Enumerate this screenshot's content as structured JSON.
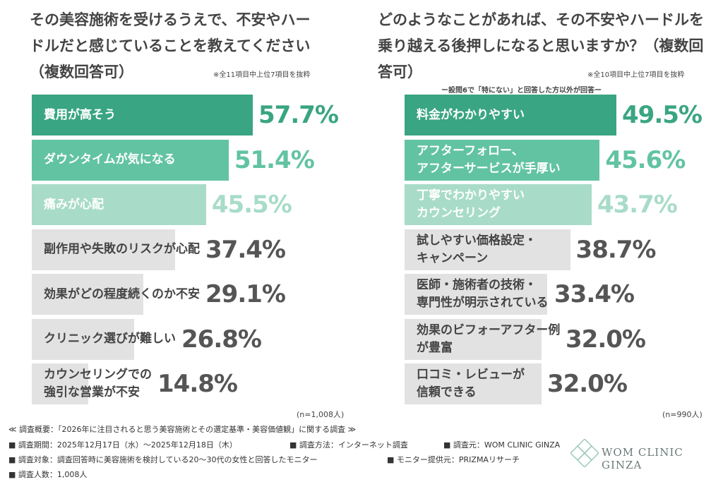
{
  "chart_data": [
    {
      "type": "bar",
      "orientation": "horizontal",
      "title": "その美容施術を受けるうえで、不安やハードルだと感じていることを教えてください（複数回答可）",
      "note": "※全11項目中上位7項目を抜粋",
      "sample": "(n=1,008人)",
      "categories": [
        "費用が高そう",
        "ダウンタイムが気になる",
        "痛みが心配",
        "副作用や失敗のリスクが心配",
        "効果がどの程度続くのか不安",
        "クリニック選びが難しい",
        "カウンセリングでの\n強引な営業が不安"
      ],
      "values": [
        57.7,
        51.4,
        45.5,
        37.4,
        29.1,
        26.8,
        14.8
      ],
      "value_labels": [
        "57.7%",
        "51.4%",
        "45.5%",
        "37.4%",
        "29.1%",
        "26.8%",
        "14.8%"
      ],
      "colors": [
        "#3aa582",
        "#62c3a2",
        "#a8dcc8",
        "#e2e2e2",
        "#e2e2e2",
        "#e2e2e2",
        "#e2e2e2"
      ],
      "text_colors": [
        "#ffffff",
        "#ffffff",
        "#ffffff",
        "#444444",
        "#444444",
        "#444444",
        "#444444"
      ],
      "label_colors": [
        "#3aa582",
        "#62c3a2",
        "#a8dcc8",
        "#555555",
        "#555555",
        "#555555",
        "#555555"
      ]
    },
    {
      "type": "bar",
      "orientation": "horizontal",
      "title": "どのようなことがあれば、その不安やハードルを乗り越える後押しになると思いますか？（複数回答可）",
      "subtitle": "ー設問6で「特にない」と回答した方以外が回答ー",
      "note": "※全10項目中上位7項目を抜粋",
      "sample": "(n=990人)",
      "categories": [
        "料金がわかりやすい",
        "アフターフォロー、\nアフターサービスが手厚い",
        "丁寧でわかりやすい\nカウンセリング",
        "試しやすい価格設定・\nキャンペーン",
        "医師・施術者の技術・\n専門性が明示されている",
        "効果のビフォーアフター例\nが豊富",
        "口コミ・レビューが\n信頼できる"
      ],
      "values": [
        49.5,
        45.6,
        43.7,
        38.7,
        33.4,
        32.0,
        32.0
      ],
      "value_labels": [
        "49.5%",
        "45.6%",
        "43.7%",
        "38.7%",
        "33.4%",
        "32.0%",
        "32.0%"
      ],
      "colors": [
        "#3aa582",
        "#62c3a2",
        "#a8dcc8",
        "#e2e2e2",
        "#e2e2e2",
        "#e2e2e2",
        "#e2e2e2"
      ],
      "text_colors": [
        "#ffffff",
        "#ffffff",
        "#ffffff",
        "#444444",
        "#444444",
        "#444444",
        "#444444"
      ],
      "label_colors": [
        "#3aa582",
        "#62c3a2",
        "#a8dcc8",
        "#555555",
        "#555555",
        "#555555",
        "#555555"
      ]
    }
  ],
  "footer": {
    "summary": "≪ 調査概要：「2026年に注目されると思う美容施術とその選定基準・美容価値観」に関する調査 ≫",
    "items": [
      "■ 調査期間：2025年12月17日（水）～2025年12月18日（木）",
      "■ 調査方法：インターネット調査",
      "■ 調査元：WOM CLINIC GINZA",
      "■ 調査対象：調査回答時に美容施術を検討している20～30代の女性と回答したモニター",
      "■ モニター提供元：PRIZMAリサーチ",
      "■ 調査人数：1,008人"
    ]
  },
  "logo": "WOM CLINIC GINZA"
}
